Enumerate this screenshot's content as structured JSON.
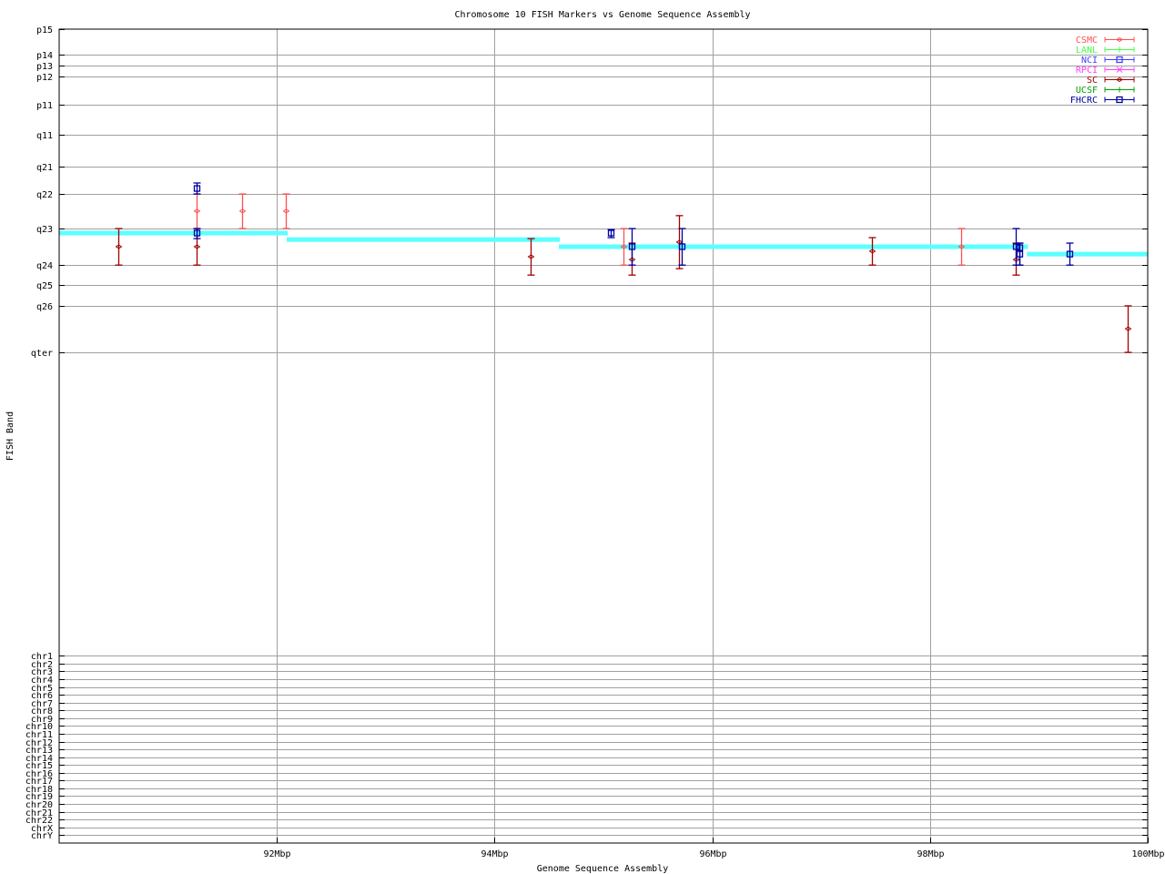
{
  "chart_data": {
    "type": "scatter",
    "title": "Chromosome 10 FISH Markers vs Genome Sequence Assembly",
    "xlabel": "Genome Sequence Assembly",
    "ylabel": "FISH Band",
    "xlim": [
      90,
      100
    ],
    "x_unit": "Mbp",
    "ylim": [
      0,
      251.8
    ],
    "grid": true,
    "legend_position": "top-right",
    "xticks": [
      {
        "value": 92,
        "label": "92Mbp"
      },
      {
        "value": 94,
        "label": "94Mbp"
      },
      {
        "value": 96,
        "label": "96Mbp"
      },
      {
        "value": 98,
        "label": "98Mbp"
      },
      {
        "value": 100,
        "label": "100Mbp"
      }
    ],
    "yticks": [
      {
        "value": 0,
        "label": "p15"
      },
      {
        "value": 7.9,
        "label": "p14"
      },
      {
        "value": 11.3,
        "label": "p13"
      },
      {
        "value": 14.6,
        "label": "p12"
      },
      {
        "value": 23.5,
        "label": "p11"
      },
      {
        "value": 32.7,
        "label": "q11"
      },
      {
        "value": 42.4,
        "label": "q21"
      },
      {
        "value": 51.0,
        "label": "q22"
      },
      {
        "value": 61.7,
        "label": "q23"
      },
      {
        "value": 73.0,
        "label": "q24"
      },
      {
        "value": 79.2,
        "label": "q25"
      },
      {
        "value": 85.6,
        "label": "q26"
      },
      {
        "value": 100,
        "label": "qter"
      },
      {
        "value": 193.9,
        "label": "chr1"
      },
      {
        "value": 196.3,
        "label": "chr2"
      },
      {
        "value": 198.7,
        "label": "chr3"
      },
      {
        "value": 201.1,
        "label": "chr4"
      },
      {
        "value": 203.5,
        "label": "chr5"
      },
      {
        "value": 205.9,
        "label": "chr6"
      },
      {
        "value": 208.3,
        "label": "chr7"
      },
      {
        "value": 210.7,
        "label": "chr8"
      },
      {
        "value": 213.2,
        "label": "chr9"
      },
      {
        "value": 215.6,
        "label": "chr10"
      },
      {
        "value": 218.0,
        "label": "chr11"
      },
      {
        "value": 220.4,
        "label": "chr12"
      },
      {
        "value": 222.8,
        "label": "chr13"
      },
      {
        "value": 225.2,
        "label": "chr14"
      },
      {
        "value": 227.6,
        "label": "chr15"
      },
      {
        "value": 230.0,
        "label": "chr16"
      },
      {
        "value": 232.4,
        "label": "chr17"
      },
      {
        "value": 234.8,
        "label": "chr18"
      },
      {
        "value": 237.2,
        "label": "chr19"
      },
      {
        "value": 239.7,
        "label": "chr20"
      },
      {
        "value": 242.1,
        "label": "chr21"
      },
      {
        "value": 244.5,
        "label": "chr22"
      },
      {
        "value": 246.9,
        "label": "chrX"
      },
      {
        "value": 249.3,
        "label": "chrY"
      }
    ],
    "assembly_segments": {
      "color": "#5cffff",
      "segments": [
        {
          "x_start": 90.0,
          "x_end": 92.1,
          "y": 63.1
        },
        {
          "x_start": 92.09,
          "x_end": 94.6,
          "y": 65.1
        },
        {
          "x_start": 94.59,
          "x_end": 98.9,
          "y": 67.3
        },
        {
          "x_start": 98.89,
          "x_end": 100.0,
          "y": 69.6
        }
      ]
    },
    "series": [
      {
        "name": "CSMC",
        "color": "#ff5050",
        "marker": "diamond",
        "points": [
          {
            "x": 91.26,
            "y": 56.3,
            "ylow": 51.0,
            "yhigh": 61.7
          },
          {
            "x": 91.68,
            "y": 56.3,
            "ylow": 51.0,
            "yhigh": 61.7
          },
          {
            "x": 92.08,
            "y": 56.3,
            "ylow": 51.0,
            "yhigh": 61.7
          },
          {
            "x": 95.18,
            "y": 67.3,
            "ylow": 61.7,
            "yhigh": 73.0
          },
          {
            "x": 98.29,
            "y": 67.3,
            "ylow": 61.7,
            "yhigh": 73.0
          }
        ]
      },
      {
        "name": "LANL",
        "color": "#40ff40",
        "marker": "plus",
        "points": []
      },
      {
        "name": "NCI",
        "color": "#4040ff",
        "marker": "square",
        "points": []
      },
      {
        "name": "RPCI",
        "color": "#ff40ff",
        "marker": "cross",
        "points": []
      },
      {
        "name": "SC",
        "color": "#a00000",
        "marker": "diamond",
        "points": [
          {
            "x": 90.54,
            "y": 67.3,
            "ylow": 61.7,
            "yhigh": 73.0
          },
          {
            "x": 91.26,
            "y": 67.3,
            "ylow": 61.7,
            "yhigh": 73.0
          },
          {
            "x": 94.33,
            "y": 70.4,
            "ylow": 64.8,
            "yhigh": 76.1
          },
          {
            "x": 95.26,
            "y": 71.3,
            "ylow": 66.2,
            "yhigh": 76.1
          },
          {
            "x": 95.69,
            "y": 65.9,
            "ylow": 57.7,
            "yhigh": 74.1
          },
          {
            "x": 97.47,
            "y": 68.7,
            "ylow": 64.5,
            "yhigh": 73.0
          },
          {
            "x": 98.79,
            "y": 71.3,
            "ylow": 66.2,
            "yhigh": 76.1
          },
          {
            "x": 99.82,
            "y": 92.7,
            "ylow": 85.6,
            "yhigh": 100
          }
        ]
      },
      {
        "name": "UCSF",
        "color": "#00a000",
        "marker": "plus",
        "points": []
      },
      {
        "name": "FHCRC",
        "color": "#0000a0",
        "marker": "square",
        "points": [
          {
            "x": 91.26,
            "y": 49.3,
            "ylow": 47.6,
            "yhigh": 51.0
          },
          {
            "x": 91.26,
            "y": 63.1,
            "ylow": 61.7,
            "yhigh": 64.8
          },
          {
            "x": 95.07,
            "y": 63.1,
            "ylow": 62.0,
            "yhigh": 64.5
          },
          {
            "x": 95.26,
            "y": 67.3,
            "ylow": 61.7,
            "yhigh": 73.0
          },
          {
            "x": 95.72,
            "y": 67.3,
            "ylow": 61.7,
            "yhigh": 73.0
          },
          {
            "x": 98.79,
            "y": 67.3,
            "ylow": 61.7,
            "yhigh": 73.0
          },
          {
            "x": 98.82,
            "y": 67.6,
            "ylow": 66.2,
            "yhigh": 73.0
          },
          {
            "x": 98.82,
            "y": 69.6,
            "ylow": 66.2,
            "yhigh": 73.0
          },
          {
            "x": 99.28,
            "y": 69.6,
            "ylow": 66.2,
            "yhigh": 73.0
          }
        ]
      }
    ]
  }
}
